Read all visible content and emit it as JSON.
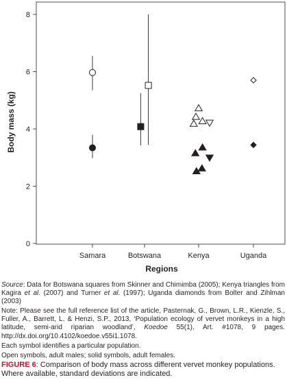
{
  "chart_data": {
    "type": "scatter",
    "xlabel": "Regions",
    "ylabel": "Body mass (kg)",
    "categories": [
      "Samara",
      "Botswana",
      "Kenya",
      "Uganda"
    ],
    "ylim": [
      0,
      8
    ],
    "yticks": [
      0,
      2,
      4,
      6,
      8
    ],
    "grid": false,
    "points": [
      {
        "category": "Samara",
        "offset": 0,
        "y": 5.97,
        "marker": "circle",
        "filled": false,
        "sd": [
          5.35,
          6.55
        ]
      },
      {
        "category": "Samara",
        "offset": 0,
        "y": 3.34,
        "marker": "circle",
        "filled": true,
        "sd": [
          2.98,
          3.8
        ]
      },
      {
        "category": "Botswana",
        "offset": 0.07,
        "y": 5.52,
        "marker": "square",
        "filled": false,
        "sd": [
          3.45,
          8.0
        ]
      },
      {
        "category": "Botswana",
        "offset": -0.07,
        "y": 4.08,
        "marker": "square",
        "filled": true,
        "sd": [
          3.42,
          5.25
        ]
      },
      {
        "category": "Kenya",
        "offset": 0.0,
        "y": 4.72,
        "marker": "triangle-up",
        "filled": false
      },
      {
        "category": "Kenya",
        "offset": -0.05,
        "y": 4.42,
        "marker": "triangle-up",
        "filled": false
      },
      {
        "category": "Kenya",
        "offset": 0.07,
        "y": 4.27,
        "marker": "triangle-up",
        "filled": false
      },
      {
        "category": "Kenya",
        "offset": -0.09,
        "y": 4.18,
        "marker": "triangle-up",
        "filled": false
      },
      {
        "category": "Kenya",
        "offset": 0.2,
        "y": 4.22,
        "marker": "triangle-down",
        "filled": false
      },
      {
        "category": "Kenya",
        "offset": 0.07,
        "y": 3.35,
        "marker": "triangle-up",
        "filled": true
      },
      {
        "category": "Kenya",
        "offset": -0.06,
        "y": 3.15,
        "marker": "triangle-up",
        "filled": true
      },
      {
        "category": "Kenya",
        "offset": 0.2,
        "y": 3.0,
        "marker": "triangle-down",
        "filled": true
      },
      {
        "category": "Kenya",
        "offset": 0.06,
        "y": 2.62,
        "marker": "triangle-up",
        "filled": true
      },
      {
        "category": "Kenya",
        "offset": -0.04,
        "y": 2.52,
        "marker": "triangle-up",
        "filled": true
      },
      {
        "category": "Uganda",
        "offset": 0,
        "y": 5.7,
        "marker": "diamond",
        "filled": false
      },
      {
        "category": "Uganda",
        "offset": 0,
        "y": 3.44,
        "marker": "diamond",
        "filled": true
      }
    ]
  },
  "notes": {
    "source_label": "Source",
    "source_p1": ": Data for Botswana squares from Skinner and Chimimba (2005); Kenya triangles from Kagira ",
    "source_etal1": "et al",
    "source_p2": ". (2007) and Turner ",
    "source_etal2": "et al",
    "source_p3": ". (1997); Uganda diamonds from Bolter and Zihlman (2003)",
    "note_p1": "Note: Please see the full reference list of the article, Pasternak, G., Brown, L.R., Kienzle, S., Fuller, A., Barrett, L. & Henzi, S.P., 2013, ‘Population ecology of vervet monkeys in a high latitude, semi-arid riparian woodland’, ",
    "note_journal": "Koedoe",
    "note_p2": " 55(1), Art. #1078, 9 pages. http://dx.doi.org/10.4102/koedoe.v55i1.1078.",
    "symbol_note": "Each symbol identifies a particular population.",
    "open_solid_note": "Open symbols, adult males; solid symbols, adult females."
  },
  "caption": {
    "label": "FIGURE 6",
    "text": ": Comparison of body mass across different vervet monkey populations. Where available, standard deviations are indicated."
  }
}
